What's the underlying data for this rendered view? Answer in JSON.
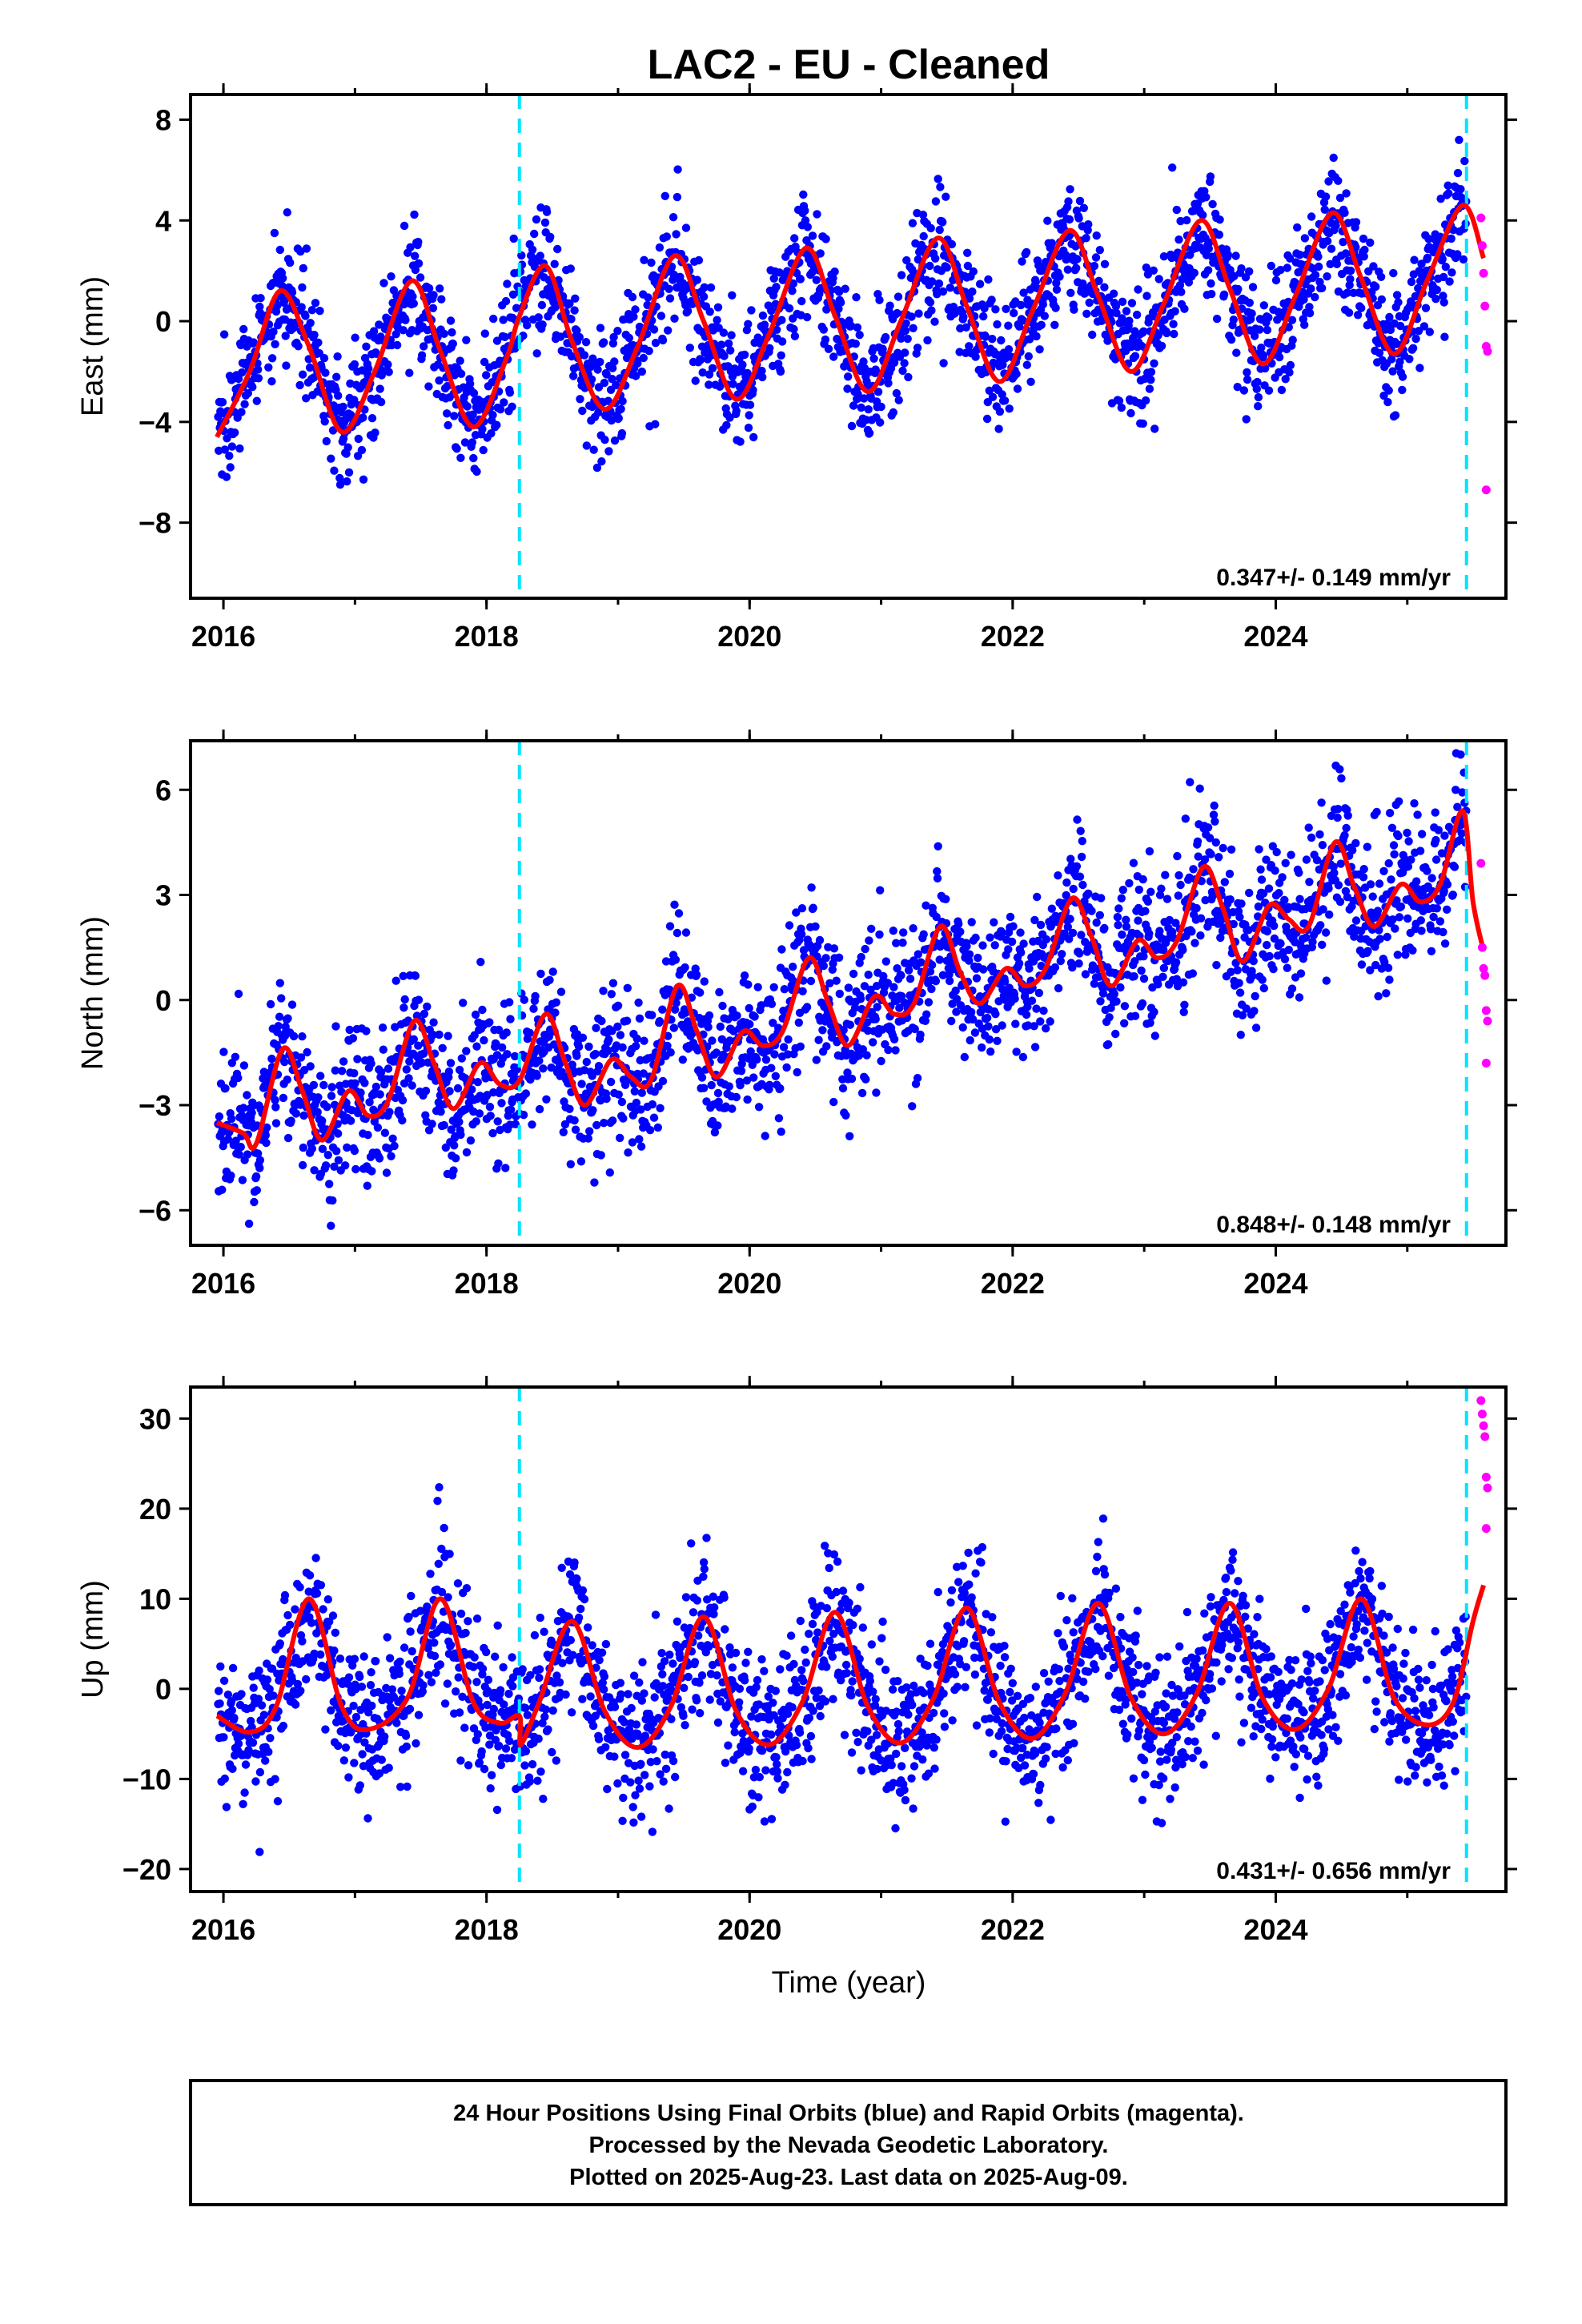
{
  "chart_data": {
    "type": "scatter",
    "title": "LAC2  - EU - Cleaned",
    "xlabel": "Time (year)",
    "xlim": [
      2015.75,
      2025.75
    ],
    "x_ticks": [
      "2016",
      "2018",
      "2020",
      "2022",
      "2024"
    ],
    "event_lines_x": [
      2018.25,
      2025.45
    ],
    "colors": {
      "final_orbits": "#0000ff",
      "rapid_orbits": "#ff00ff",
      "model_fit": "#ff0000",
      "event_line": "#00e5ff",
      "frame": "#000000"
    },
    "panels": [
      {
        "name": "east",
        "ylabel": "East (mm)",
        "ylim": [
          -11,
          9
        ],
        "y_ticks": [
          "8",
          "4",
          "0",
          "−4",
          "−8"
        ],
        "y_tick_values": [
          8,
          4,
          0,
          -4,
          -8
        ],
        "rate_label": "0.347+/- 0.149 mm/yr",
        "fit_trace": {
          "x": [
            2015.95,
            2016.2,
            2016.43,
            2016.65,
            2016.9,
            2017.15,
            2017.43,
            2017.65,
            2017.9,
            2018.15,
            2018.25,
            2018.45,
            2018.65,
            2018.9,
            2019.15,
            2019.43,
            2019.65,
            2019.9,
            2020.15,
            2020.43,
            2020.65,
            2020.9,
            2021.15,
            2021.43,
            2021.65,
            2021.9,
            2022.15,
            2022.43,
            2022.65,
            2022.9,
            2023.15,
            2023.43,
            2023.65,
            2023.9,
            2024.15,
            2024.43,
            2024.65,
            2024.9,
            2025.15,
            2025.42,
            2025.58
          ],
          "y": [
            -4.6,
            -2.0,
            1.2,
            -1.0,
            -4.4,
            -2.0,
            1.6,
            -1.2,
            -4.2,
            -1.5,
            0.2,
            2.2,
            -0.8,
            -3.5,
            -1.0,
            2.6,
            0.0,
            -3.1,
            -0.5,
            2.9,
            0.2,
            -2.8,
            0.0,
            3.3,
            0.6,
            -2.4,
            0.4,
            3.6,
            1.0,
            -2.0,
            0.7,
            4.0,
            1.3,
            -1.7,
            1.0,
            4.3,
            1.7,
            -1.3,
            1.6,
            4.6,
            2.5
          ]
        },
        "rapid_points": {
          "x": [
            2025.56,
            2025.57,
            2025.58,
            2025.59,
            2025.6,
            2025.61,
            2025.6
          ],
          "y": [
            4.1,
            3.0,
            1.9,
            0.6,
            -1.0,
            -1.2,
            -6.7
          ]
        }
      },
      {
        "name": "north",
        "ylabel": "North (mm)",
        "ylim": [
          -7,
          7.4
        ],
        "y_ticks": [
          "6",
          "3",
          "0",
          "−3",
          "−6"
        ],
        "y_tick_values": [
          6,
          3,
          0,
          -3,
          -6
        ],
        "rate_label": "0.848+/- 0.148 mm/yr",
        "fit_trace": {
          "x": [
            2015.95,
            2016.15,
            2016.25,
            2016.45,
            2016.6,
            2016.75,
            2016.95,
            2017.1,
            2017.25,
            2017.45,
            2017.6,
            2017.75,
            2017.95,
            2018.1,
            2018.25,
            2018.45,
            2018.6,
            2018.75,
            2018.95,
            2019.1,
            2019.25,
            2019.45,
            2019.6,
            2019.75,
            2019.95,
            2020.1,
            2020.25,
            2020.45,
            2020.6,
            2020.75,
            2020.95,
            2021.1,
            2021.25,
            2021.45,
            2021.6,
            2021.75,
            2021.95,
            2022.1,
            2022.25,
            2022.45,
            2022.6,
            2022.75,
            2022.95,
            2023.1,
            2023.25,
            2023.45,
            2023.6,
            2023.75,
            2023.95,
            2024.1,
            2024.25,
            2024.45,
            2024.6,
            2024.75,
            2024.95,
            2025.1,
            2025.25,
            2025.42,
            2025.5,
            2025.58
          ],
          "y": [
            -3.5,
            -3.8,
            -4.1,
            -1.4,
            -2.6,
            -4.0,
            -2.6,
            -3.3,
            -2.9,
            -0.6,
            -1.8,
            -3.1,
            -1.8,
            -2.4,
            -2.3,
            -0.4,
            -1.8,
            -3.0,
            -1.7,
            -2.2,
            -2.3,
            0.4,
            -0.9,
            -2.2,
            -0.9,
            -1.3,
            -0.9,
            1.2,
            -0.1,
            -1.3,
            0.1,
            -0.4,
            -0.1,
            2.1,
            0.8,
            -0.1,
            0.9,
            0.4,
            0.9,
            2.9,
            1.8,
            0.4,
            1.7,
            1.2,
            1.7,
            3.8,
            2.6,
            1.1,
            2.7,
            2.3,
            2.1,
            4.5,
            3.2,
            2.1,
            3.3,
            2.8,
            3.3,
            5.4,
            2.8,
            1.4
          ]
        },
        "rapid_points": {
          "x": [
            2025.56,
            2025.57,
            2025.58,
            2025.59,
            2025.6,
            2025.61,
            2025.6
          ],
          "y": [
            3.9,
            1.5,
            0.9,
            0.7,
            -0.3,
            -0.6,
            -1.8
          ]
        }
      },
      {
        "name": "up",
        "ylabel": "Up (mm)",
        "ylim": [
          -22.5,
          33.5
        ],
        "y_ticks": [
          "30",
          "20",
          "10",
          "0",
          "−10",
          "−20"
        ],
        "y_tick_values": [
          30,
          20,
          10,
          0,
          -10,
          -20
        ],
        "rate_label": "0.431+/- 0.656 mm/yr",
        "fit_trace": {
          "x": [
            2015.95,
            2016.2,
            2016.4,
            2016.65,
            2016.9,
            2017.1,
            2017.4,
            2017.65,
            2017.9,
            2018.1,
            2018.25,
            2018.26,
            2018.4,
            2018.65,
            2018.9,
            2019.15,
            2019.4,
            2019.65,
            2019.9,
            2020.15,
            2020.4,
            2020.65,
            2020.9,
            2021.15,
            2021.4,
            2021.65,
            2021.9,
            2022.15,
            2022.4,
            2022.65,
            2022.9,
            2023.15,
            2023.4,
            2023.65,
            2023.9,
            2024.15,
            2024.4,
            2024.65,
            2024.9,
            2025.15,
            2025.35,
            2025.5,
            2025.58
          ],
          "y": [
            -3.0,
            -4.8,
            -2.0,
            10.0,
            -2.0,
            -4.5,
            -1.0,
            10.0,
            -1.5,
            -3.8,
            -3.0,
            -6.2,
            -1.5,
            7.5,
            -2.5,
            -6.5,
            -2.0,
            8.0,
            -2.5,
            -6.2,
            -1.5,
            8.5,
            -2.0,
            -6.0,
            -1.0,
            9.0,
            -1.5,
            -5.5,
            -0.5,
            9.5,
            -1.0,
            -5.0,
            -0.5,
            9.5,
            -1.0,
            -4.5,
            0.0,
            10.0,
            -1.0,
            -4.0,
            -1.5,
            7.5,
            11.5
          ]
        },
        "rapid_points": {
          "x": [
            2025.56,
            2025.57,
            2025.58,
            2025.59,
            2025.6,
            2025.61,
            2025.6
          ],
          "y": [
            32.0,
            30.5,
            29.2,
            28.0,
            23.5,
            22.3,
            17.8
          ]
        }
      }
    ],
    "footer_lines": [
      "24 Hour Positions Using Final Orbits (blue) and Rapid Orbits (magenta).",
      "Processed by the Nevada Geodetic Laboratory.",
      "Plotted on 2025-Aug-23. Last data on 2025-Aug-09."
    ]
  }
}
